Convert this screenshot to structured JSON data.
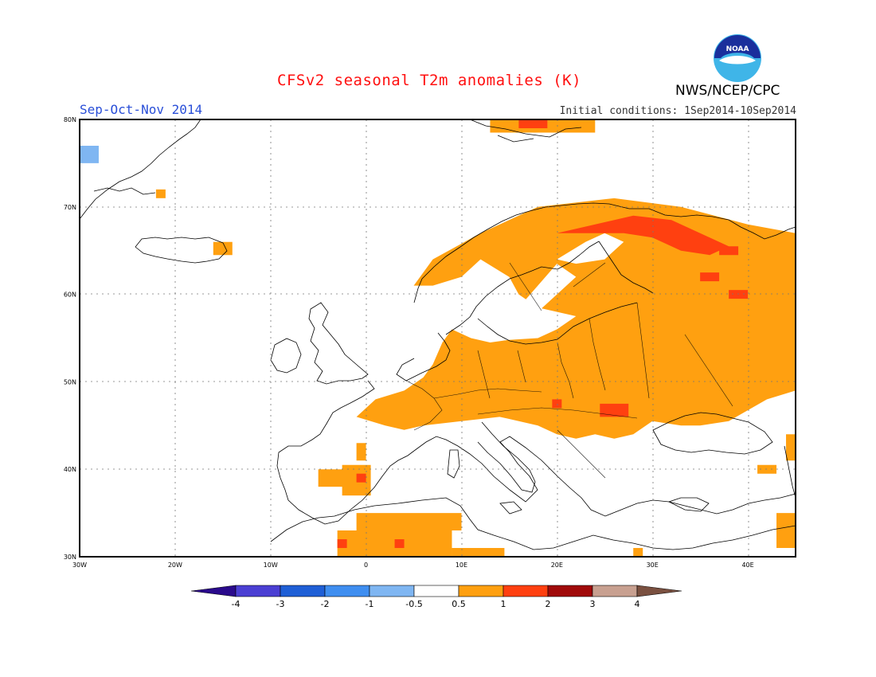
{
  "header": {
    "title": "CFSv2 seasonal T2m anomalies (K)",
    "season": "Sep-Oct-Nov 2014",
    "initial_conditions": "Initial conditions: 1Sep2014-10Sep2014",
    "agency": "NWS/NCEP/CPC",
    "logo_text": "NOAA"
  },
  "map": {
    "region": "Europe",
    "lon_range": [
      -30,
      45
    ],
    "lat_range": [
      30,
      80
    ],
    "lon_ticks": [
      "30W",
      "20W",
      "10W",
      "0",
      "10E",
      "20E",
      "30E",
      "40E"
    ],
    "lat_ticks": [
      "30N",
      "40N",
      "50N",
      "60N",
      "70N",
      "80N"
    ],
    "grid": "dotted"
  },
  "colorbar": {
    "labels": [
      "-4",
      "-3",
      "-2",
      "-1",
      "-0.5",
      "0.5",
      "1",
      "2",
      "3",
      "4"
    ],
    "colors": [
      "#2a0a8c",
      "#4b3fd3",
      "#1f5fd6",
      "#3f8ef0",
      "#7fb6f2",
      "#ffffff",
      "#ffa010",
      "#ff4010",
      "#a00a0a",
      "#c8a090",
      "#7a5040"
    ]
  },
  "anomaly_colors": {
    "warm_1": "#ffa010",
    "warm_2": "#ff4010",
    "cool_1": "#7fb6f2"
  }
}
